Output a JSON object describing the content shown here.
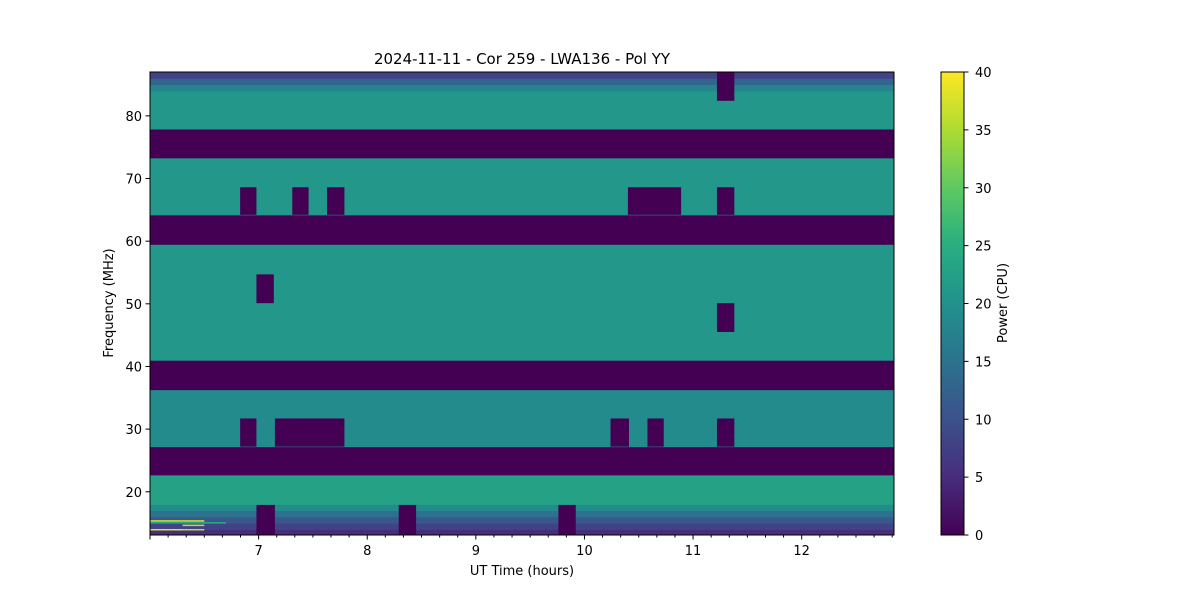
{
  "chart_data": {
    "type": "heatmap",
    "title": "2024-11-11 - Cor 259 - LWA136 - Pol YY",
    "xlabel": "UT Time (hours)",
    "ylabel": "Frequency (MHz)",
    "colorbar_label": "Power (CPU)",
    "colormap": "viridis",
    "xlim": [
      6.0,
      12.85
    ],
    "ylim": [
      13.1,
      87.0
    ],
    "clim": [
      0,
      40
    ],
    "xticks": [
      "7",
      "8",
      "9",
      "10",
      "11",
      "12"
    ],
    "xtick_values": [
      7,
      8,
      9,
      10,
      11,
      12
    ],
    "yticks": [
      "20",
      "30",
      "40",
      "50",
      "60",
      "70",
      "80"
    ],
    "ytick_values": [
      20,
      30,
      40,
      50,
      60,
      70,
      80
    ],
    "cticks": [
      "0",
      "5",
      "10",
      "15",
      "20",
      "25",
      "30",
      "35",
      "40"
    ],
    "ctick_values": [
      0,
      5,
      10,
      15,
      20,
      25,
      30,
      35,
      40
    ],
    "bands": [
      {
        "f": [
          13.1,
          14.0
        ],
        "power": 5
      },
      {
        "f": [
          14.0,
          15.0
        ],
        "power": 8
      },
      {
        "f": [
          15.0,
          16.0
        ],
        "power": 11
      },
      {
        "f": [
          16.0,
          17.0
        ],
        "power": 15
      },
      {
        "f": [
          17.0,
          18.0
        ],
        "power": 19
      },
      {
        "f": [
          18.0,
          22.7
        ],
        "power": 23
      },
      {
        "f": [
          22.7,
          27.2
        ],
        "power": 0
      },
      {
        "f": [
          27.2,
          36.3
        ],
        "power": 19
      },
      {
        "f": [
          36.3,
          41.0
        ],
        "power": 0
      },
      {
        "f": [
          41.0,
          59.5
        ],
        "power": 21
      },
      {
        "f": [
          59.5,
          64.2
        ],
        "power": 0
      },
      {
        "f": [
          64.2,
          73.3
        ],
        "power": 21
      },
      {
        "f": [
          73.3,
          77.9
        ],
        "power": 0
      },
      {
        "f": [
          77.9,
          84.0
        ],
        "power": 21
      },
      {
        "f": [
          84.0,
          85.0
        ],
        "power": 18
      },
      {
        "f": [
          85.0,
          86.0
        ],
        "power": 13
      },
      {
        "f": [
          86.0,
          87.0
        ],
        "power": 8
      }
    ],
    "dropouts": [
      {
        "t": [
          6.83,
          6.98
        ],
        "f": [
          64.2,
          68.6
        ]
      },
      {
        "t": [
          7.31,
          7.46
        ],
        "f": [
          64.2,
          68.6
        ]
      },
      {
        "t": [
          7.63,
          7.79
        ],
        "f": [
          64.2,
          68.6
        ]
      },
      {
        "t": [
          10.4,
          10.89
        ],
        "f": [
          64.2,
          68.6
        ]
      },
      {
        "t": [
          11.22,
          11.38
        ],
        "f": [
          64.2,
          68.6
        ]
      },
      {
        "t": [
          11.22,
          11.38
        ],
        "f": [
          82.4,
          87.0
        ]
      },
      {
        "t": [
          6.98,
          7.14
        ],
        "f": [
          50.1,
          54.7
        ]
      },
      {
        "t": [
          11.22,
          11.38
        ],
        "f": [
          45.5,
          50.1
        ]
      },
      {
        "t": [
          6.83,
          6.98
        ],
        "f": [
          27.2,
          31.7
        ]
      },
      {
        "t": [
          7.15,
          7.79
        ],
        "f": [
          27.2,
          31.7
        ]
      },
      {
        "t": [
          10.24,
          10.41
        ],
        "f": [
          27.2,
          31.7
        ]
      },
      {
        "t": [
          10.58,
          10.73
        ],
        "f": [
          27.2,
          31.7
        ]
      },
      {
        "t": [
          11.22,
          11.38
        ],
        "f": [
          27.2,
          31.7
        ]
      },
      {
        "t": [
          6.98,
          7.15
        ],
        "f": [
          13.1,
          17.9
        ]
      },
      {
        "t": [
          8.29,
          8.45
        ],
        "f": [
          13.1,
          17.9
        ]
      },
      {
        "t": [
          9.76,
          9.92
        ],
        "f": [
          13.1,
          17.9
        ]
      }
    ],
    "spikes": [
      {
        "t": [
          6.0,
          6.5
        ],
        "f": 15.3,
        "power": 38
      },
      {
        "t": [
          6.3,
          6.5
        ],
        "f": 14.6,
        "power": 36
      },
      {
        "t": [
          6.0,
          6.3
        ],
        "f": 13.9,
        "power": 38
      },
      {
        "t": [
          6.3,
          6.5
        ],
        "f": 13.9,
        "power": 36
      },
      {
        "t": [
          6.0,
          6.7
        ],
        "f": 15.0,
        "power": 25
      }
    ]
  }
}
